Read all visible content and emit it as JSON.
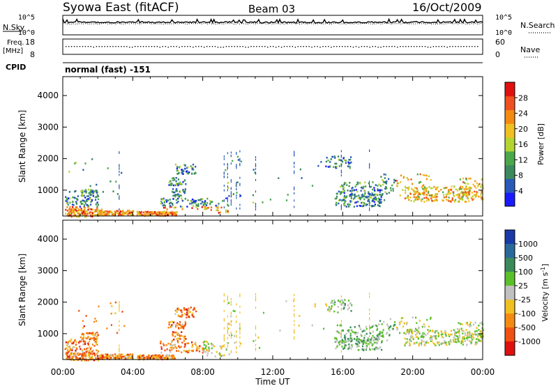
{
  "header": {
    "title": "Syowa East (fitACF)",
    "beam": "Beam 03",
    "date": "16/Oct/2009"
  },
  "top_panels": {
    "nsky_label": "N.Sky",
    "nsearch_label": "N.Search",
    "noise_ticks": [
      "10^5",
      "10^0"
    ],
    "freq_label_1": "Freq.",
    "freq_label_2": "[MHz]",
    "freq_ticks": [
      "18",
      "8"
    ],
    "nave_label": "Nave",
    "nave_ticks": [
      "60",
      "0"
    ],
    "cpid_label": "CPID",
    "cpid_value": "normal (fast) -151"
  },
  "chart_data": [
    {
      "type": "heatmap",
      "name": "power",
      "ylabel": "Slant Range [km]",
      "xlabel": "",
      "x_ticks": [
        "00:00",
        "04:00",
        "08:00",
        "12:00",
        "16:00",
        "20:00",
        "00:00"
      ],
      "x_range_hours": [
        0,
        24
      ],
      "ylim": [
        180,
        4600
      ],
      "y_ticks": [
        1000,
        2000,
        3000,
        4000
      ],
      "colorbar_label": "Power [dB]",
      "colorbar_ticks": [
        "4",
        "8",
        "12",
        "16",
        "20",
        "24",
        "28"
      ],
      "colorbar_range": [
        0,
        32
      ]
    },
    {
      "type": "heatmap",
      "name": "velocity",
      "ylabel": "Slant Range [km]",
      "xlabel": "Time UT",
      "x_ticks": [
        "00:00",
        "04:00",
        "08:00",
        "12:00",
        "16:00",
        "20:00",
        "00:00"
      ],
      "x_range_hours": [
        0,
        24
      ],
      "ylim": [
        180,
        4600
      ],
      "y_ticks": [
        1000,
        2000,
        3000,
        4000
      ],
      "colorbar_label": "Velocity [m s^-1]",
      "colorbar_ticks": [
        "1000",
        "500",
        "100",
        "25",
        "-25",
        "-100",
        "-500",
        "-1000"
      ]
    }
  ],
  "colors": {
    "power_scale": [
      "#1a1aff",
      "#2a5ab8",
      "#3a8a5e",
      "#4aa84a",
      "#b4d430",
      "#f0c020",
      "#f58a10",
      "#f05020",
      "#e01010"
    ],
    "velocity_scale": [
      "#1a3aa8",
      "#2a6a9a",
      "#3a8a5a",
      "#5ac02a",
      "#c0c0c0",
      "#f0c020",
      "#f58a10",
      "#f05010",
      "#e01010"
    ],
    "noise_line": "#000000"
  }
}
